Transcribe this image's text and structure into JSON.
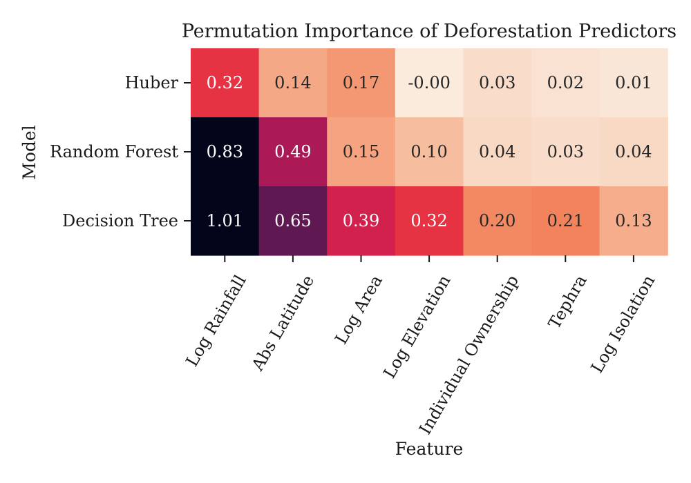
{
  "chart_data": {
    "type": "heatmap",
    "title": "Permutation Importance of Deforestation Predictors",
    "xlabel": "Feature",
    "ylabel": "Model",
    "x_categories": [
      "Log Rainfall",
      "Abs Latitude",
      "Log Area",
      "Log Elevation",
      "Individual Ownership",
      "Tephra",
      "Log Isolation"
    ],
    "y_categories": [
      "Huber",
      "Random Forest",
      "Decision Tree"
    ],
    "values": [
      [
        0.32,
        0.14,
        0.17,
        -0.0,
        0.03,
        0.02,
        0.01
      ],
      [
        0.83,
        0.49,
        0.15,
        0.1,
        0.04,
        0.03,
        0.04
      ],
      [
        1.01,
        0.65,
        0.39,
        0.32,
        0.2,
        0.21,
        0.13
      ]
    ],
    "cell_labels": [
      [
        "0.32",
        "0.14",
        "0.17",
        "-0.00",
        "0.03",
        "0.02",
        "0.01"
      ],
      [
        "0.83",
        "0.49",
        "0.15",
        "0.10",
        "0.04",
        "0.03",
        "0.04"
      ],
      [
        "1.01",
        "0.65",
        "0.39",
        "0.32",
        "0.20",
        "0.21",
        "0.13"
      ]
    ],
    "colormap": "rocket_r",
    "color_range": [
      0.0,
      0.83
    ],
    "colorbar": false,
    "grid": false
  }
}
